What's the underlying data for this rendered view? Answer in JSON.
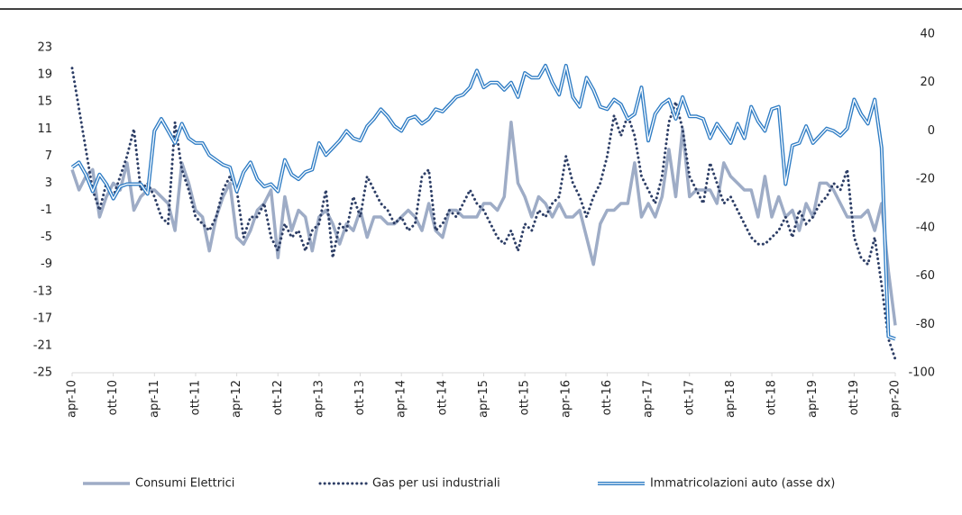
{
  "chart_data": {
    "type": "line",
    "categories": [
      "apr-10",
      null,
      null,
      null,
      null,
      null,
      "ott-10",
      null,
      null,
      null,
      null,
      null,
      "apr-11",
      null,
      null,
      null,
      null,
      null,
      "ott-11",
      null,
      null,
      null,
      null,
      null,
      "apr-12",
      null,
      null,
      null,
      null,
      null,
      "ott-12",
      null,
      null,
      null,
      null,
      null,
      "apr-13",
      null,
      null,
      null,
      null,
      null,
      "ott-13",
      null,
      null,
      null,
      null,
      null,
      "apr-14",
      null,
      null,
      null,
      null,
      null,
      "ott-14",
      null,
      null,
      null,
      null,
      null,
      "apr-15",
      null,
      null,
      null,
      null,
      null,
      "ott-15",
      null,
      null,
      null,
      null,
      null,
      "apr-16",
      null,
      null,
      null,
      null,
      null,
      "ott-16",
      null,
      null,
      null,
      null,
      null,
      "apr-17",
      null,
      null,
      null,
      null,
      null,
      "ott-17",
      null,
      null,
      null,
      null,
      null,
      "apr-18",
      null,
      null,
      null,
      null,
      null,
      "ott-18",
      null,
      null,
      null,
      null,
      null,
      "apr-19",
      null,
      null,
      null,
      null,
      null,
      "ott-19",
      null,
      null,
      null,
      null,
      null,
      "apr-20"
    ],
    "ylim": [
      -25,
      25
    ],
    "yticks": [
      -25,
      -21,
      -17,
      -13,
      -9,
      -5,
      -1,
      3,
      7,
      11,
      15,
      19,
      23
    ],
    "y2lim": [
      -100,
      40
    ],
    "y2ticks": [
      -100,
      -80,
      -60,
      -40,
      -20,
      0,
      20,
      40
    ],
    "grid": false,
    "legend": "bottom",
    "series": [
      {
        "name": "Consumi Elettrici",
        "color": "#9eacc6",
        "line_style": "solid",
        "values": [
          5,
          2,
          4,
          5,
          -2,
          1,
          3,
          2,
          6,
          -1,
          1,
          2,
          2,
          1,
          0,
          -4,
          6,
          3,
          -1,
          -2,
          -7,
          -2,
          1,
          3,
          -5,
          -6,
          -4,
          -1,
          0,
          2,
          -8,
          1,
          -4,
          -1,
          -2,
          -7,
          -2,
          -1,
          -3,
          -6,
          -3,
          -4,
          -1,
          -5,
          -2,
          -2,
          -3,
          -3,
          -2,
          -1,
          -2,
          -4,
          0,
          -4,
          -5,
          -1,
          -1,
          -2,
          -2,
          -2,
          0,
          0,
          -1,
          1,
          12,
          3,
          1,
          -2,
          1,
          0,
          -2,
          0,
          -2,
          -2,
          -1,
          -5,
          -9,
          -3,
          -1,
          -1,
          0,
          0,
          6,
          -2,
          0,
          -2,
          1,
          8,
          1,
          11,
          1,
          2,
          2,
          2,
          0,
          6,
          4,
          3,
          2,
          2,
          -2,
          4,
          -2,
          1,
          -2,
          -1,
          -4,
          0,
          -2,
          3,
          3,
          2,
          0,
          -2,
          -2,
          -2,
          -1,
          -4,
          0,
          -10,
          -18
        ]
      },
      {
        "name": "Gas per usi industriali",
        "color": "#2d3e66",
        "line_style": "dotted",
        "values": [
          20,
          14,
          8,
          2,
          -1,
          3,
          1,
          4,
          7,
          11,
          2,
          3,
          1,
          -2,
          -3,
          12,
          5,
          2,
          -2,
          -3,
          -4,
          -2,
          2,
          4,
          2,
          -5,
          -2,
          -2,
          0,
          -5,
          -7,
          -3,
          -5,
          -4,
          -7,
          -4,
          -3,
          2,
          -8,
          -3,
          -4,
          1,
          -2,
          4,
          2,
          0,
          -1,
          -3,
          -2,
          -4,
          -3,
          4,
          5,
          -4,
          -3,
          -1,
          -2,
          0,
          2,
          0,
          -1,
          -3,
          -5,
          -6,
          -4,
          -7,
          -3,
          -4,
          -1,
          -2,
          0,
          1,
          7,
          3,
          1,
          -2,
          1,
          3,
          7,
          13,
          10,
          13,
          10,
          4,
          2,
          0,
          4,
          12,
          15,
          11,
          4,
          2,
          0,
          6,
          3,
          0,
          1,
          -1,
          -3,
          -5,
          -6,
          -6,
          -5,
          -4,
          -2,
          -5,
          -1,
          -3,
          -2,
          0,
          1,
          3,
          2,
          5,
          -5,
          -8,
          -9,
          -5,
          -12,
          -20,
          -23
        ]
      },
      {
        "name": "Immatricolazioni auto (asse dx)",
        "color": "#2e7cc4",
        "line_style": "double",
        "axis": "y2",
        "values": [
          -15,
          -13,
          -18,
          -25,
          -18,
          -22,
          -28,
          -23,
          -22,
          -22,
          -22,
          -26,
          0,
          5,
          0,
          -5,
          3,
          -3,
          -5,
          -5,
          -10,
          -12,
          -14,
          -15,
          -25,
          -17,
          -13,
          -20,
          -23,
          -22,
          -25,
          -12,
          -18,
          -20,
          -17,
          -16,
          -5,
          -10,
          -7,
          -4,
          0,
          -3,
          -4,
          2,
          5,
          9,
          6,
          2,
          0,
          5,
          6,
          3,
          5,
          9,
          8,
          11,
          14,
          15,
          18,
          25,
          18,
          20,
          20,
          17,
          20,
          14,
          24,
          22,
          22,
          27,
          20,
          15,
          27,
          14,
          10,
          22,
          17,
          10,
          9,
          13,
          11,
          5,
          7,
          18,
          -4,
          7,
          11,
          13,
          5,
          14,
          6,
          6,
          5,
          -3,
          3,
          -1,
          -5,
          3,
          -3,
          10,
          4,
          0,
          9,
          10,
          -22,
          -6,
          -5,
          2,
          -5,
          -2,
          1,
          0,
          -2,
          1,
          13,
          7,
          3,
          13,
          -7,
          -85,
          -86
        ]
      }
    ]
  }
}
